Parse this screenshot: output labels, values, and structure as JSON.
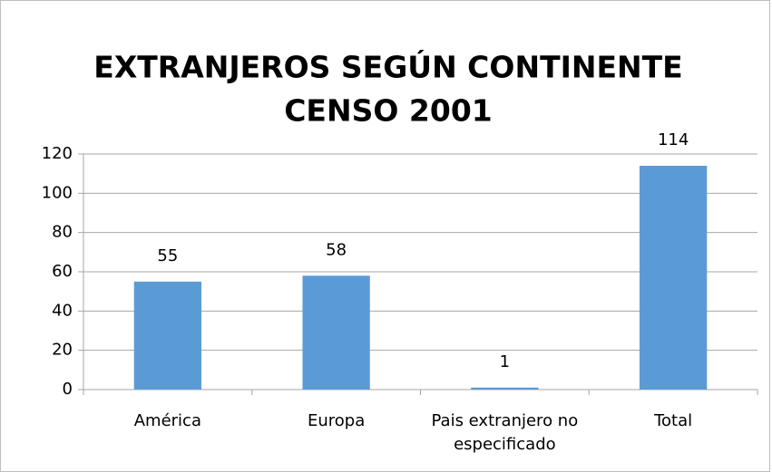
{
  "chart_data": {
    "type": "bar",
    "title": [
      "EXTRANJEROS SEGÚN CONTINENTE",
      "CENSO 2001"
    ],
    "categories": [
      "América",
      "Europa",
      "Pais extranjero no especificado",
      "Total"
    ],
    "values": [
      55,
      58,
      1,
      114
    ],
    "color": "#5b9bd5",
    "ylim": [
      0,
      120
    ],
    "yticks": [
      0,
      20,
      40,
      60,
      80,
      100,
      120
    ],
    "grid": true
  }
}
